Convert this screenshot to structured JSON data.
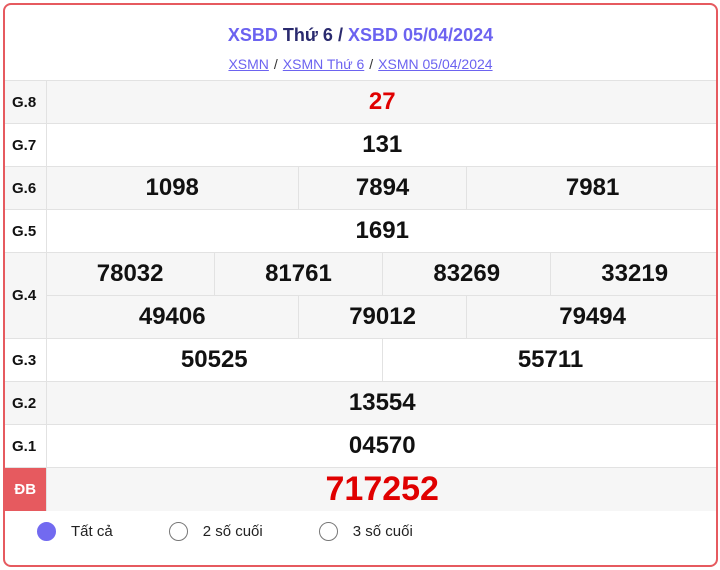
{
  "header": {
    "title_link1": "XSBD",
    "title_day": "Thứ 6",
    "title_sep": "/",
    "title_link2": "XSBD 05/04/2024",
    "breadcrumbs": [
      "XSMN",
      "XSMN Thứ 6",
      "XSMN 05/04/2024"
    ],
    "sep": "/"
  },
  "prizes": {
    "g8": {
      "label": "G.8",
      "values": [
        "27"
      ]
    },
    "g7": {
      "label": "G.7",
      "values": [
        "131"
      ]
    },
    "g6": {
      "label": "G.6",
      "values": [
        "1098",
        "7894",
        "7981"
      ]
    },
    "g5": {
      "label": "G.5",
      "values": [
        "1691"
      ]
    },
    "g4": {
      "label": "G.4",
      "values": [
        "78032",
        "81761",
        "83269",
        "33219",
        "49406",
        "79012",
        "79494"
      ]
    },
    "g3": {
      "label": "G.3",
      "values": [
        "50525",
        "55711"
      ]
    },
    "g2": {
      "label": "G.2",
      "values": [
        "13554"
      ]
    },
    "g1": {
      "label": "G.1",
      "values": [
        "04570"
      ]
    },
    "db": {
      "label": "ĐB",
      "values": [
        "717252"
      ]
    }
  },
  "filter": {
    "options": [
      "Tất cả",
      "2 số cuối",
      "3 số cuối"
    ],
    "selected": "Tất cả"
  },
  "colors": {
    "accent": "#6c63f0",
    "special": "#e00000",
    "border": "#e65a5f"
  }
}
